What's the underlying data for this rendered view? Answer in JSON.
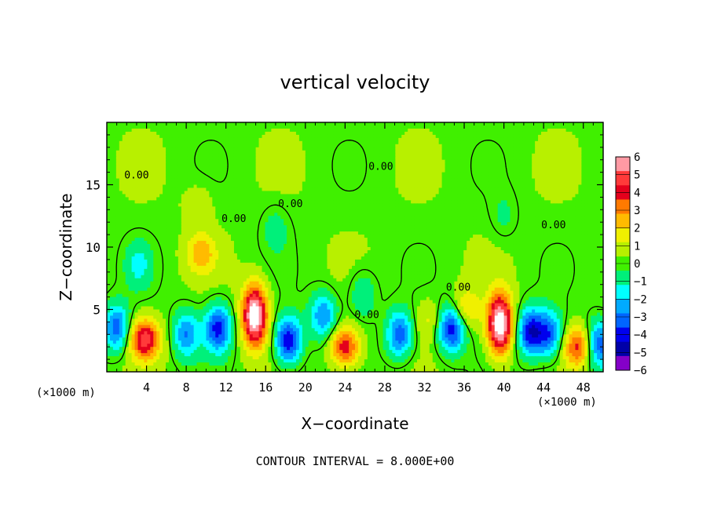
{
  "chart_data": {
    "type": "heatmap",
    "title": "vertical velocity",
    "xlabel": "X−coordinate",
    "ylabel": "Z−coordinate",
    "x_units_left": "(×1000 m)",
    "x_units_right": "(×1000 m)",
    "xlim": [
      0,
      50
    ],
    "ylim": [
      0,
      20
    ],
    "x_ticks": [
      4,
      8,
      12,
      16,
      20,
      24,
      28,
      32,
      36,
      40,
      44,
      48
    ],
    "x_tick_labels": [
      "4",
      "8",
      "12",
      "16",
      "20",
      "24",
      "28",
      "32",
      "36",
      "40",
      "44",
      "48"
    ],
    "y_ticks": [
      5,
      10,
      15
    ],
    "y_tick_labels": [
      "5",
      "10",
      "15"
    ],
    "contour_interval_text": "CONTOUR INTERVAL = 8.000E+00",
    "contour_labels": [
      {
        "text": "0.00",
        "x": 3.0,
        "y": 15.5
      },
      {
        "text": "0.00",
        "x": 12.8,
        "y": 12.0
      },
      {
        "text": "0.00",
        "x": 18.5,
        "y": 13.2
      },
      {
        "text": "0.00",
        "x": 27.6,
        "y": 16.2
      },
      {
        "text": "0.00",
        "x": 26.2,
        "y": 4.3
      },
      {
        "text": "0.00",
        "x": 35.4,
        "y": 6.5
      },
      {
        "text": "0.00",
        "x": 45.0,
        "y": 11.5
      }
    ],
    "colorbar": {
      "min": -6,
      "max": 6,
      "tick_labels": [
        "6",
        "5",
        "4",
        "3",
        "2",
        "1",
        "0",
        "−1",
        "−2",
        "−3",
        "−4",
        "−5",
        "−6"
      ],
      "colors": [
        "#ff9aa4",
        "#ff3a3a",
        "#e4001c",
        "#ff7a00",
        "#ffbb00",
        "#f0f000",
        "#b8f000",
        "#40f000",
        "#00f07a",
        "#00ffff",
        "#00aaff",
        "#0066ff",
        "#0000ee",
        "#0000a8",
        "#8400c8"
      ]
    },
    "features": [
      {
        "name": "updraft",
        "x": 14.9,
        "y": 4.5,
        "peak": 6.8
      },
      {
        "name": "updraft",
        "x": 39.6,
        "y": 3.8,
        "peak": 6.8
      },
      {
        "name": "updraft",
        "x": 3.8,
        "y": 2.6,
        "peak": 4.6
      },
      {
        "name": "updraft",
        "x": 24.0,
        "y": 2.0,
        "peak": 4.0
      },
      {
        "name": "updraft",
        "x": 47.5,
        "y": 2.0,
        "peak": 3.6
      },
      {
        "name": "updraft",
        "x": 9.5,
        "y": 9.5,
        "peak": 2.2
      },
      {
        "name": "updraft",
        "x": 9.2,
        "y": 13.5,
        "peak": 0.8
      },
      {
        "name": "updraft",
        "x": 36.0,
        "y": 5.0,
        "peak": 2.0
      },
      {
        "name": "updraft",
        "x": 32.5,
        "y": 4.2,
        "peak": 1.2
      },
      {
        "name": "downdraft",
        "x": 1.0,
        "y": 3.5,
        "peak": -3.6
      },
      {
        "name": "downdraft",
        "x": 8.0,
        "y": 3.0,
        "peak": -3.0
      },
      {
        "name": "downdraft",
        "x": 11.2,
        "y": 3.5,
        "peak": -4.2
      },
      {
        "name": "downdraft",
        "x": 18.3,
        "y": 2.5,
        "peak": -4.6
      },
      {
        "name": "downdraft",
        "x": 21.8,
        "y": 4.5,
        "peak": -3.0
      },
      {
        "name": "downdraft",
        "x": 29.5,
        "y": 3.0,
        "peak": -3.6
      },
      {
        "name": "downdraft",
        "x": 34.7,
        "y": 3.5,
        "peak": -4.6
      },
      {
        "name": "downdraft",
        "x": 42.7,
        "y": 3.2,
        "peak": -4.4
      },
      {
        "name": "downdraft",
        "x": 44.6,
        "y": 3.0,
        "peak": -3.4
      },
      {
        "name": "downdraft",
        "x": 49.5,
        "y": 2.2,
        "peak": -3.8
      },
      {
        "name": "downdraft",
        "x": 25.8,
        "y": 6.2,
        "peak": -1.6
      },
      {
        "name": "downdraft",
        "x": 3.2,
        "y": 8.6,
        "peak": -1.5
      },
      {
        "name": "downdraft",
        "x": 17.0,
        "y": 11.5,
        "peak": -1.0
      },
      {
        "name": "downdraft",
        "x": 40.0,
        "y": 12.5,
        "peak": -0.8
      }
    ]
  }
}
